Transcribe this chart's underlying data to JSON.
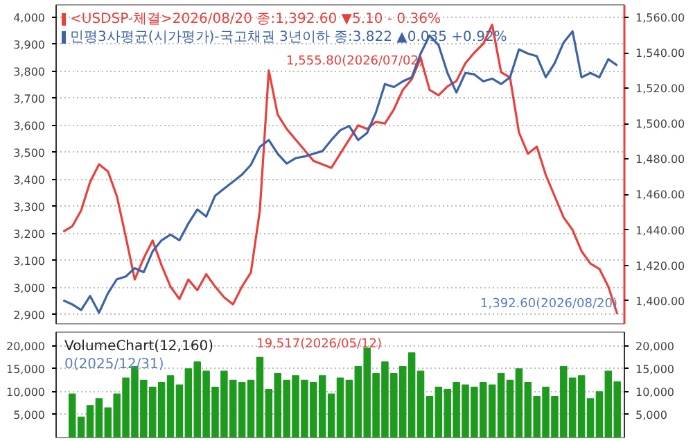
{
  "chart_data": [
    {
      "type": "line",
      "categories": [
        null,
        null,
        null,
        null,
        null,
        null,
        null,
        null,
        null,
        null,
        null,
        null,
        null,
        null,
        null,
        null,
        null,
        null,
        null,
        null,
        null,
        null,
        null,
        null,
        null,
        null,
        null,
        null,
        null,
        null,
        null,
        null,
        null,
        null,
        null,
        null,
        null,
        null,
        null,
        null,
        null,
        null,
        null,
        null,
        null,
        null,
        null,
        null,
        null,
        null,
        null,
        null,
        null,
        null,
        null,
        null,
        null,
        null,
        null,
        null,
        null,
        null,
        null
      ],
      "series": [
        {
          "name": "<USDSP-체결>2026/08/20 종:1,392.60  ▼5.10  - 0.36%",
          "color": "#e8413c",
          "axis": "y2",
          "values": [
            1439,
            1442,
            1451,
            1467,
            1477,
            1473,
            1459,
            1436,
            1412,
            1424,
            1434,
            1420,
            1408,
            1401,
            1412,
            1406,
            1415,
            1408,
            1402,
            1398,
            1408,
            1416,
            1451,
            1530,
            1505,
            1497,
            1491,
            1485,
            1479,
            1477,
            1475,
            1483,
            1491,
            1499,
            1497,
            1501,
            1500,
            1508,
            1519,
            1525,
            1537,
            1519,
            1516,
            1521,
            1524,
            1534,
            1540,
            1545,
            1555.8,
            1529,
            1526,
            1495,
            1483,
            1487,
            1471,
            1459,
            1447,
            1440,
            1428,
            1421,
            1418,
            1408,
            1392.6
          ]
        },
        {
          "name": "민평3사평균(시가평가)-국고채권 3년이하 종:3.822  ▲0.035  +0.92%",
          "color": "#3d62a8",
          "values": [
            2953,
            2938,
            2917,
            2969,
            2907,
            2979,
            3031,
            3041,
            3072,
            3057,
            3134,
            3175,
            3196,
            3175,
            3237,
            3289,
            3263,
            3340,
            3366,
            3392,
            3418,
            3454,
            3521,
            3546,
            3495,
            3459,
            3479,
            3485,
            3495,
            3505,
            3546,
            3582,
            3598,
            3546,
            3572,
            3649,
            3753,
            3742,
            3763,
            3778,
            3866,
            3933,
            3897,
            3794,
            3722,
            3794,
            3789,
            3763,
            3773,
            3753,
            3778,
            3881,
            3866,
            3856,
            3778,
            3830,
            3907,
            3948,
            3778,
            3794,
            3778,
            3845,
            3822
          ]
        }
      ],
      "ylim": [
        2866,
        4046
      ],
      "yticks": [
        {
          "value": 2900,
          "label": "2,900"
        },
        {
          "value": 3000,
          "label": "3,000"
        },
        {
          "value": 3100,
          "label": "3,100"
        },
        {
          "value": 3200,
          "label": "3,200"
        },
        {
          "value": 3300,
          "label": "3,300"
        },
        {
          "value": 3400,
          "label": "3,400"
        },
        {
          "value": 3500,
          "label": "3,500"
        },
        {
          "value": 3600,
          "label": "3,600"
        },
        {
          "value": 3700,
          "label": "3,700"
        },
        {
          "value": 3800,
          "label": "3,800"
        },
        {
          "value": 3900,
          "label": "3,900"
        },
        {
          "value": 4000,
          "label": "4,000"
        }
      ],
      "y2lim": [
        1387,
        1567
      ],
      "y2ticks": [
        {
          "value": 1400,
          "label": "1,400.00"
        },
        {
          "value": 1420,
          "label": "1,420.00"
        },
        {
          "value": 1440,
          "label": "1,440.00"
        },
        {
          "value": 1460,
          "label": "1,460.00"
        },
        {
          "value": 1480,
          "label": "1,480.00"
        },
        {
          "value": 1500,
          "label": "1,500.00"
        },
        {
          "value": 1520,
          "label": "1,520.00"
        },
        {
          "value": 1540,
          "label": "1,540.00"
        },
        {
          "value": 1560,
          "label": "1,560.00"
        }
      ],
      "grid": "y",
      "legend": "top left",
      "annotations": [
        "1,555.80(2026/07/02)",
        "1,392.60(2026/08/20)"
      ]
    },
    {
      "type": "bar",
      "title": "VolumeChart(12,160)",
      "categories": [
        null,
        null,
        null,
        null,
        null,
        null,
        null,
        null,
        null,
        null,
        null,
        null,
        null,
        null,
        null,
        null,
        null,
        null,
        null,
        null,
        null,
        null,
        null,
        null,
        null,
        null,
        null,
        null,
        null,
        null,
        null,
        null,
        null,
        null,
        null,
        null,
        null,
        null,
        null,
        null,
        null,
        null,
        null,
        null,
        null,
        null,
        null,
        null,
        null,
        null,
        null,
        null,
        null,
        null,
        null,
        null,
        null,
        null,
        null,
        null,
        null,
        null,
        null
      ],
      "values": [
        0,
        9500,
        4500,
        7000,
        8500,
        6500,
        9500,
        13000,
        15500,
        12500,
        11000,
        12000,
        13500,
        11500,
        15000,
        16500,
        14500,
        11000,
        14500,
        12500,
        12000,
        12500,
        17500,
        10500,
        14000,
        12500,
        13500,
        12500,
        12000,
        13500,
        9500,
        13000,
        12500,
        15500,
        19517,
        14000,
        16500,
        14000,
        15500,
        18500,
        14500,
        9000,
        11000,
        10500,
        12000,
        11500,
        11000,
        12000,
        11500,
        14000,
        12500,
        15000,
        12000,
        9000,
        11000,
        9000,
        15500,
        13000,
        13500,
        8500,
        10000,
        14500,
        12160
      ],
      "color": "#1e9b1e",
      "ylim": [
        0,
        23000
      ],
      "yticks": [
        {
          "value": 5000,
          "label": "5,000"
        },
        {
          "value": 10000,
          "label": "10,000"
        },
        {
          "value": 15000,
          "label": "15,000"
        },
        {
          "value": 20000,
          "label": "20,000"
        }
      ],
      "y2lim": [
        0,
        23000
      ],
      "y2ticks": [
        {
          "value": 5000,
          "label": "5,000"
        },
        {
          "value": 10000,
          "label": "10,000"
        },
        {
          "value": 15000,
          "label": "15,000"
        },
        {
          "value": 20000,
          "label": "20,000"
        }
      ],
      "grid": "y",
      "annotations": [
        "0(2025/12/31)",
        "19,517(2026/05/12)"
      ]
    }
  ]
}
